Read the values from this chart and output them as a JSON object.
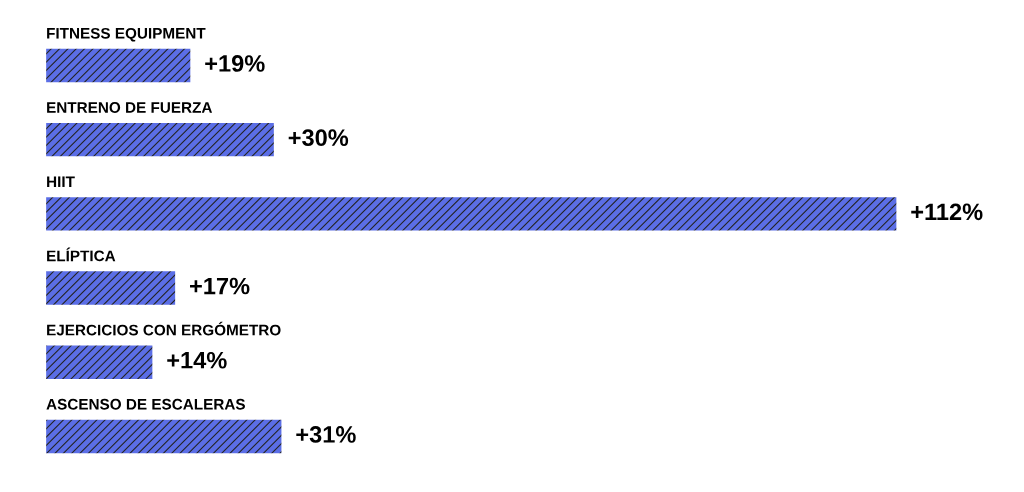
{
  "chart_data": {
    "type": "bar",
    "orientation": "horizontal",
    "categories": [
      "FITNESS EQUIPMENT",
      "ENTRENO DE FUERZA",
      "HIIT",
      "ELÍPTICA",
      "EJERCICIOS CON ERGÓMETRO",
      "ASCENSO DE ESCALERAS"
    ],
    "values": [
      19,
      30,
      112,
      17,
      14,
      31
    ],
    "value_labels": [
      "+19%",
      "+30%",
      "+112%",
      "+17%",
      "+14%",
      "+31%"
    ],
    "color": "#5b6ee6"
  }
}
